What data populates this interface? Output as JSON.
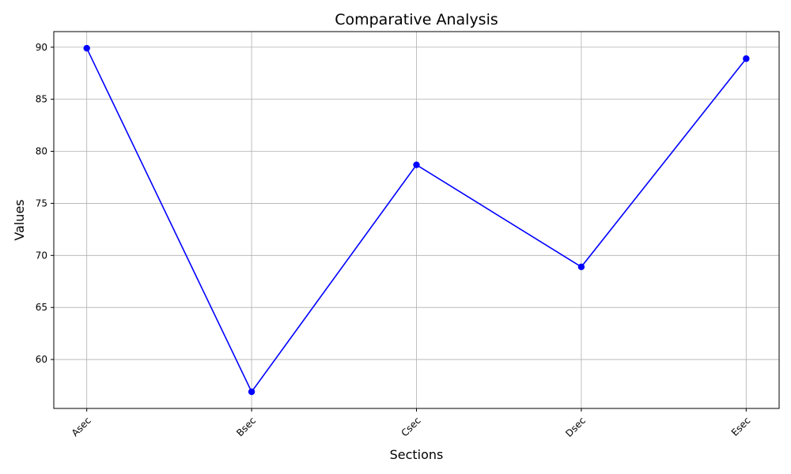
{
  "chart_data": {
    "type": "line",
    "title": "Comparative Analysis",
    "xlabel": "Sections",
    "ylabel": "Values",
    "categories": [
      "Asec",
      "Bsec",
      "Csec",
      "Dsec",
      "Esec"
    ],
    "series": [
      {
        "values": [
          89.9,
          56.9,
          78.7,
          68.9,
          88.9
        ],
        "color": "#0000ff",
        "marker": "circle"
      }
    ],
    "ylim": [
      55.3,
      91.5
    ],
    "yticks": [
      60,
      65,
      70,
      75,
      80,
      85,
      90
    ],
    "grid": true,
    "x_tick_rotation": 45
  }
}
